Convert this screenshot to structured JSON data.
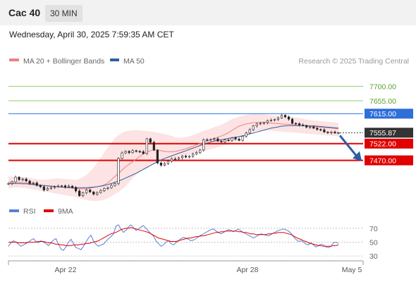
{
  "header": {
    "title": "Cac 40",
    "timeframe": "30 MIN",
    "datetime": "Wednesday, April 30, 2025 7:59:35 AM CET"
  },
  "legend": {
    "ma20_label": "MA 20 + Bollinger Bands",
    "ma50_label": "MA 50",
    "credit": "Research © 2025 Trading Central"
  },
  "colors": {
    "ma20": "#f08080",
    "ma50": "#2f5f9f",
    "bands": "#fcd9d9",
    "resistance": "#8fce6a",
    "pivot": "#2e6fd8",
    "support": "#e00000",
    "last_price": "#333333",
    "candle": "#222222",
    "rsi": "#5b7fd6",
    "rsi_ma": "#e00000",
    "arrow": "#2a5ea6"
  },
  "chart_data": [
    {
      "type": "candlestick",
      "title": "",
      "x_tick_labels": [
        "Apr 22",
        "Apr 28",
        "May 5"
      ],
      "ylim": [
        7355,
        7760
      ],
      "levels": [
        {
          "value": 7700.0,
          "label": "7700.00",
          "kind": "resistance"
        },
        {
          "value": 7655.0,
          "label": "7655.00",
          "kind": "resistance"
        },
        {
          "value": 7615.0,
          "label": "7615.00",
          "kind": "pivot"
        },
        {
          "value": 7555.87,
          "label": "7555.87",
          "kind": "last"
        },
        {
          "value": 7522.0,
          "label": "7522.00",
          "kind": "support"
        },
        {
          "value": 7470.0,
          "label": "7470.00",
          "kind": "support"
        }
      ],
      "close": [
        7398,
        7403,
        7418,
        7410,
        7412,
        7406,
        7398,
        7400,
        7392,
        7388,
        7378,
        7383,
        7386,
        7388,
        7390,
        7391,
        7387,
        7390,
        7386,
        7375,
        7360,
        7370,
        7378,
        7372,
        7365,
        7370,
        7376,
        7383,
        7385,
        7392,
        7398,
        7476,
        7493,
        7498,
        7494,
        7500,
        7498,
        7497,
        7491,
        7537,
        7526,
        7502,
        7462,
        7455,
        7460,
        7468,
        7475,
        7475,
        7478,
        7483,
        7480,
        7483,
        7490,
        7494,
        7502,
        7534,
        7533,
        7535,
        7537,
        7530,
        7527,
        7533,
        7532,
        7540,
        7536,
        7532,
        7545,
        7555,
        7565,
        7577,
        7583,
        7585,
        7587,
        7593,
        7595,
        7597,
        7602,
        7610,
        7605,
        7598,
        7585,
        7584,
        7580,
        7578,
        7573,
        7574,
        7570,
        7566,
        7565,
        7558,
        7556,
        7558,
        7555,
        7556
      ],
      "ma20": [
        7402,
        7403,
        7403,
        7402,
        7401,
        7400,
        7399,
        7397,
        7395,
        7393,
        7392,
        7391,
        7390,
        7389,
        7388,
        7387,
        7386,
        7385,
        7384,
        7383,
        7382,
        7382,
        7382,
        7384,
        7386,
        7388,
        7390,
        7394,
        7400,
        7410,
        7420,
        7430,
        7440,
        7450,
        7458,
        7466,
        7474,
        7482,
        7490,
        7496,
        7500,
        7502,
        7502,
        7500,
        7498,
        7497,
        7497,
        7498,
        7500,
        7503,
        7506,
        7510,
        7514,
        7518,
        7522,
        7526,
        7530,
        7534,
        7538,
        7542,
        7546,
        7550,
        7556,
        7563,
        7570,
        7576,
        7580,
        7583,
        7585,
        7587,
        7588,
        7588,
        7588,
        7587,
        7586,
        7585,
        7584,
        7583,
        7582,
        7582,
        7581,
        7580,
        7579,
        7578,
        7577,
        7576,
        7575,
        7574,
        7573,
        7572,
        7571,
        7570,
        7569,
        7567
      ],
      "ma50": [
        7398,
        7398,
        7398,
        7398,
        7397,
        7397,
        7396,
        7395,
        7394,
        7393,
        7392,
        7391,
        7390,
        7389,
        7388,
        7387,
        7386,
        7386,
        7385,
        7385,
        7385,
        7385,
        7385,
        7386,
        7387,
        7388,
        7390,
        7392,
        7395,
        7398,
        7402,
        7406,
        7410,
        7415,
        7420,
        7425,
        7430,
        7436,
        7442,
        7448,
        7454,
        7460,
        7466,
        7471,
        7476,
        7480,
        7484,
        7488,
        7492,
        7496,
        7500,
        7504,
        7508,
        7512,
        7516,
        7520,
        7524,
        7527,
        7530,
        7532,
        7534,
        7536,
        7538,
        7540,
        7542,
        7544,
        7546,
        7549,
        7552,
        7555,
        7558,
        7561,
        7564,
        7567,
        7570,
        7572,
        7574,
        7576,
        7577,
        7578,
        7578,
        7578,
        7578,
        7578,
        7578,
        7577,
        7577,
        7576,
        7575,
        7574,
        7573,
        7572,
        7571,
        7570
      ],
      "bb_upper": [
        7420,
        7420,
        7419,
        7418,
        7418,
        7417,
        7416,
        7414,
        7412,
        7410,
        7410,
        7411,
        7412,
        7413,
        7414,
        7413,
        7412,
        7411,
        7410,
        7409,
        7413,
        7418,
        7425,
        7435,
        7448,
        7462,
        7478,
        7495,
        7510,
        7525,
        7540,
        7548,
        7555,
        7560,
        7562,
        7563,
        7564,
        7563,
        7562,
        7561,
        7560,
        7558,
        7556,
        7554,
        7552,
        7549,
        7546,
        7542,
        7540,
        7540,
        7542,
        7545,
        7549,
        7553,
        7557,
        7561,
        7565,
        7569,
        7573,
        7577,
        7581,
        7586,
        7592,
        7598,
        7602,
        7606,
        7609,
        7611,
        7612,
        7613,
        7613,
        7613,
        7612,
        7611,
        7610,
        7609,
        7608,
        7607,
        7606,
        7605,
        7604,
        7603,
        7601,
        7599,
        7597,
        7595,
        7594,
        7593,
        7592,
        7591,
        7590,
        7589,
        7588,
        7587
      ],
      "bb_lower": [
        7384,
        7385,
        7386,
        7386,
        7385,
        7384,
        7382,
        7380,
        7378,
        7376,
        7374,
        7372,
        7370,
        7368,
        7366,
        7364,
        7362,
        7360,
        7358,
        7356,
        7352,
        7349,
        7347,
        7345,
        7344,
        7344,
        7345,
        7348,
        7352,
        7358,
        7365,
        7372,
        7380,
        7390,
        7402,
        7414,
        7425,
        7435,
        7442,
        7450,
        7456,
        7461,
        7465,
        7468,
        7470,
        7472,
        7474,
        7476,
        7478,
        7481,
        7484,
        7487,
        7490,
        7493,
        7496,
        7499,
        7502,
        7505,
        7508,
        7511,
        7514,
        7517,
        7521,
        7526,
        7532,
        7539,
        7546,
        7552,
        7556,
        7559,
        7561,
        7562,
        7563,
        7563,
        7562,
        7561,
        7560,
        7559,
        7558,
        7558,
        7557,
        7556,
        7555,
        7554,
        7553,
        7552,
        7551,
        7550,
        7549,
        7548,
        7547,
        7546,
        7545,
        7544
      ]
    },
    {
      "type": "line",
      "title": "",
      "legend": [
        "RSI",
        "9MA"
      ],
      "ylim": [
        25,
        80
      ],
      "y_ticks": [
        30,
        50,
        70
      ],
      "series": [
        {
          "name": "RSI",
          "values": [
            44,
            49,
            52,
            50,
            47,
            44,
            46,
            48,
            50,
            53,
            55,
            51,
            49,
            52,
            50,
            48,
            45,
            49,
            53,
            55,
            47,
            40,
            38,
            43,
            50,
            54,
            48,
            42,
            41,
            39,
            44,
            50,
            56,
            60,
            52,
            47,
            44,
            46,
            47,
            51,
            55,
            58,
            62,
            73,
            75,
            69,
            64,
            67,
            72,
            75,
            71,
            67,
            69,
            72,
            74,
            70,
            66,
            62,
            59,
            52,
            48,
            44,
            46,
            50,
            52,
            48,
            46,
            49,
            52,
            55,
            57,
            56,
            54,
            52,
            53,
            55,
            58,
            60,
            62,
            64,
            66,
            68,
            69,
            66,
            64,
            62,
            64,
            66,
            68,
            67,
            65,
            67,
            69,
            66,
            64,
            62,
            60,
            58,
            56,
            58,
            60,
            62,
            61,
            60,
            59,
            61,
            63,
            65,
            67,
            68,
            69,
            68,
            66,
            63,
            58,
            54,
            51,
            52,
            50,
            47,
            46,
            49,
            46,
            43,
            45,
            47,
            46,
            43,
            42,
            44,
            49,
            50,
            48
          ]
        },
        {
          "name": "9MA",
          "values": [
            50,
            50,
            50,
            50,
            49,
            49,
            49,
            49,
            50,
            50,
            50,
            50,
            51,
            51,
            51,
            50,
            49,
            49,
            48,
            47,
            47,
            46,
            46,
            45,
            45,
            45,
            46,
            46,
            46,
            47,
            47,
            48,
            48,
            49,
            50,
            51,
            52,
            54,
            56,
            58,
            60,
            62,
            63,
            64,
            66,
            68,
            69,
            70,
            70,
            71,
            70,
            69,
            68,
            67,
            66,
            65,
            64,
            62,
            60,
            58,
            56,
            55,
            54,
            53,
            52,
            51,
            51,
            51,
            52,
            53,
            54,
            55,
            56,
            56,
            57,
            58,
            58,
            59,
            59,
            60,
            61,
            62,
            63,
            64,
            64,
            65,
            65,
            66,
            66,
            66,
            66,
            66,
            65,
            65,
            64,
            64,
            63,
            62,
            62,
            61,
            61,
            61,
            61,
            61,
            62,
            62,
            63,
            63,
            64,
            64,
            64,
            63,
            62,
            61,
            59,
            57,
            55,
            54,
            52,
            51,
            49,
            48,
            47,
            46,
            45,
            45,
            44,
            44,
            44,
            44,
            45,
            45,
            46
          ]
        }
      ]
    }
  ]
}
